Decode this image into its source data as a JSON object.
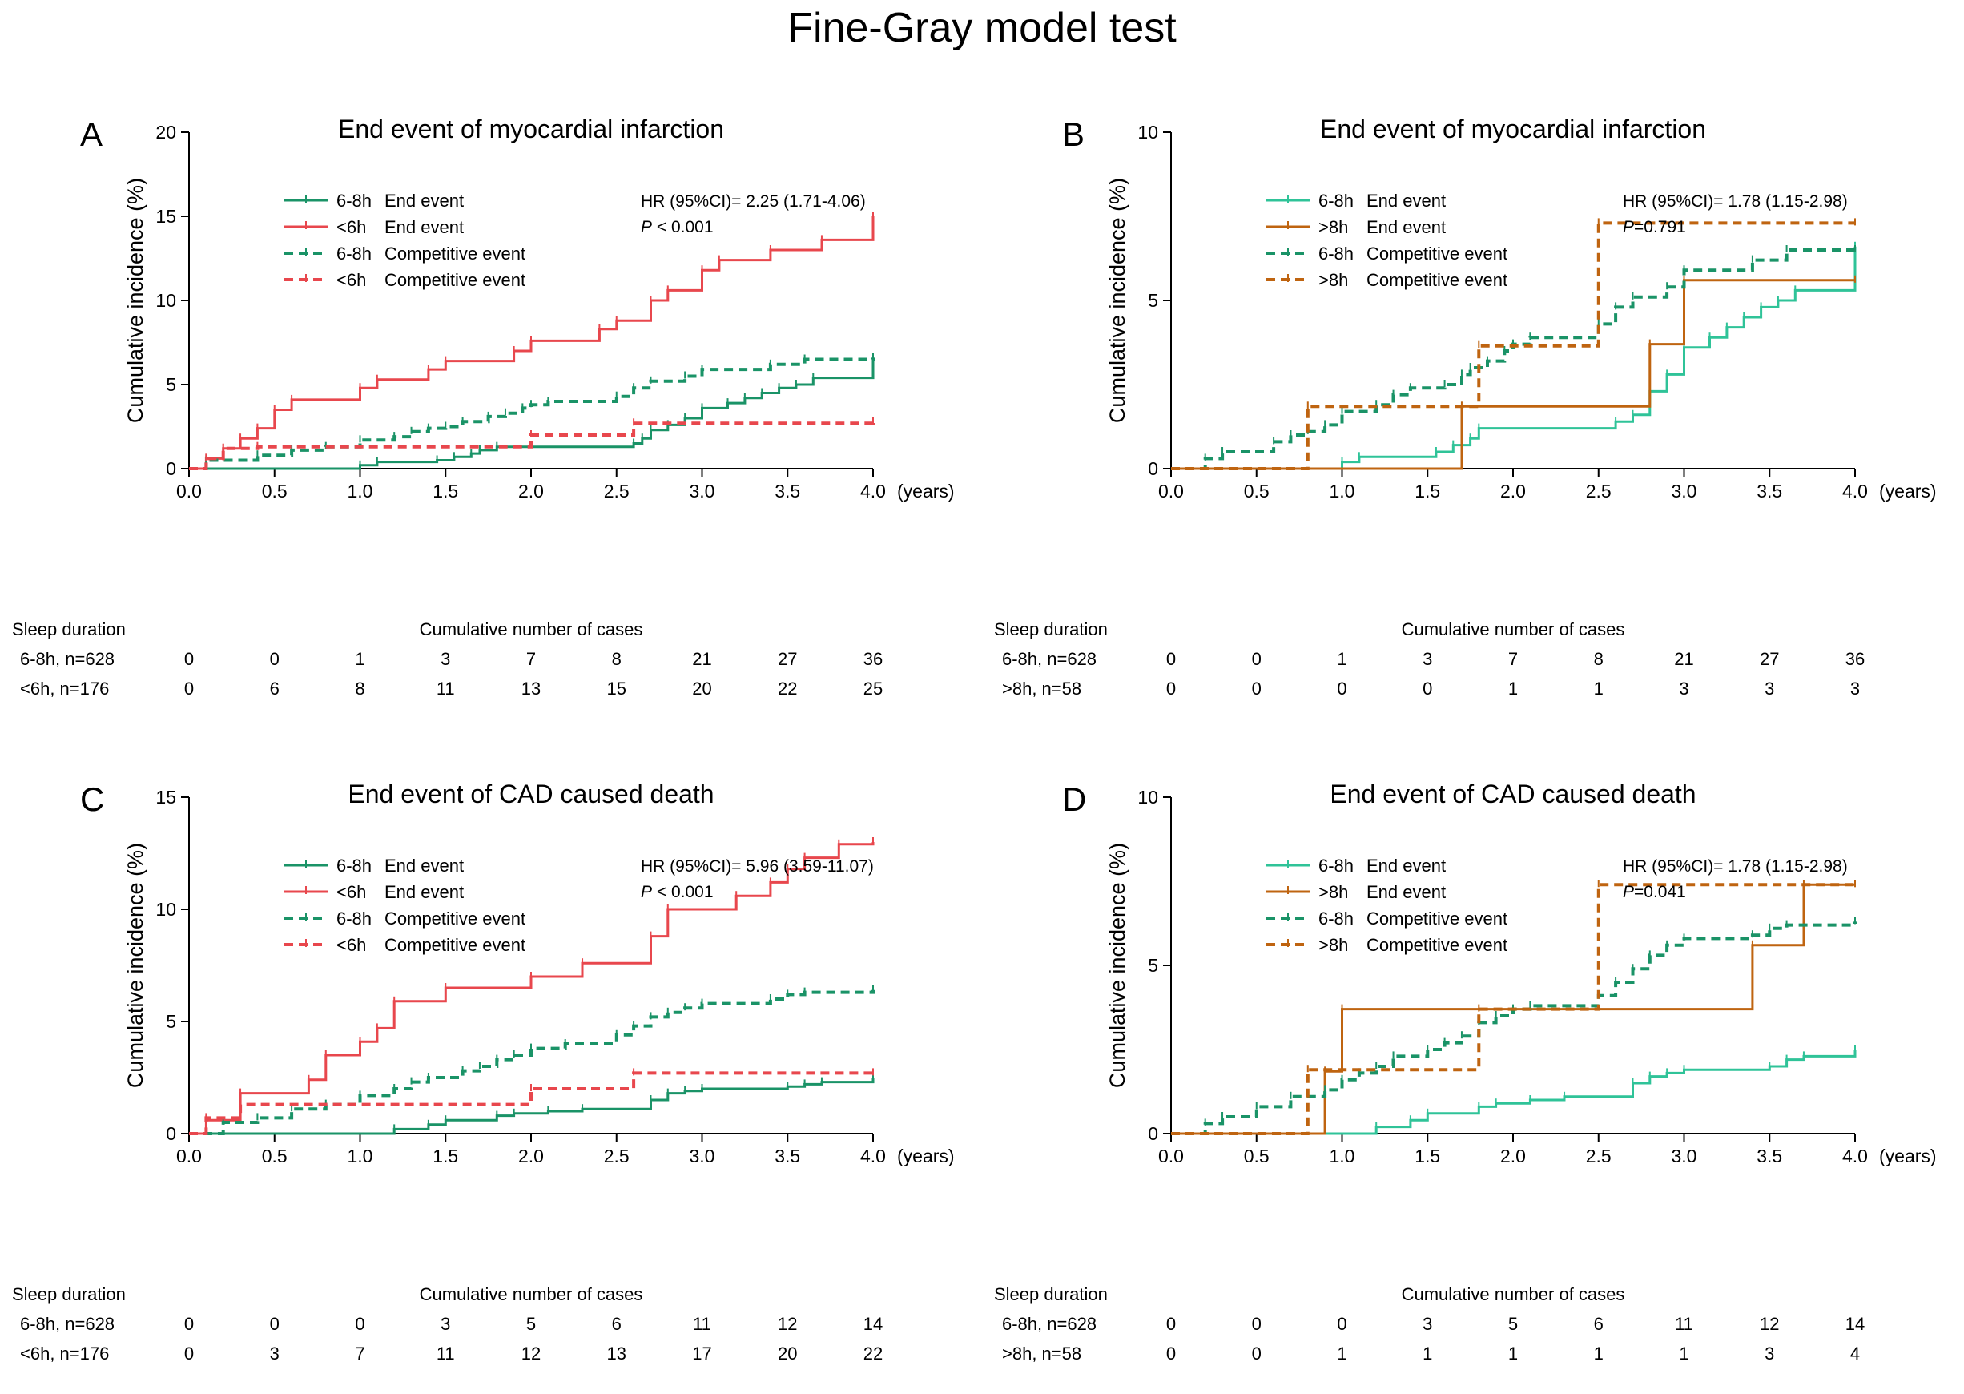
{
  "title": "Fine-Gray model test",
  "colors": {
    "green_dark": "#1a9367",
    "green_light": "#2fc398",
    "red": "#e8474d",
    "orange": "#bf6410"
  },
  "chart_data": [
    {
      "type": "line",
      "panel_label": "A",
      "title": "End event of myocardial infarction",
      "ylabel": "Cumulative incidence (%)",
      "xlabel": "(years)",
      "xlim": [
        0,
        4
      ],
      "ylim": [
        0,
        20
      ],
      "xticks": [
        "0.0",
        "0.5",
        "1.0",
        "1.5",
        "2.0",
        "2.5",
        "3.0",
        "3.5",
        "4.0"
      ],
      "yticks": [
        "0",
        "5",
        "10",
        "15",
        "20"
      ],
      "hr_text": "HR (95%CI)= 2.25 (1.71-4.06)",
      "p_text": "P < 0.001",
      "legend": [
        {
          "group": "6-8h",
          "event": "End event",
          "color": "#1a9367",
          "dash": false
        },
        {
          "group": "<6h",
          "event": "End event",
          "color": "#e8474d",
          "dash": false
        },
        {
          "group": "6-8h",
          "event": "Competitive event",
          "color": "#1a9367",
          "dash": true
        },
        {
          "group": "<6h",
          "event": "Competitive event",
          "color": "#e8474d",
          "dash": true
        }
      ],
      "series": [
        {
          "name": "6-8h End event",
          "color": "#1a9367",
          "dash": false,
          "x": [
            0,
            1.0,
            1.1,
            1.45,
            1.55,
            1.65,
            1.7,
            1.8,
            2.6,
            2.65,
            2.7,
            2.8,
            2.9,
            3.0,
            3.15,
            3.25,
            3.35,
            3.45,
            3.55,
            3.65,
            4.0
          ],
          "y": [
            0,
            0.2,
            0.4,
            0.5,
            0.7,
            0.9,
            1.1,
            1.3,
            1.5,
            1.8,
            2.3,
            2.6,
            3.0,
            3.6,
            3.9,
            4.2,
            4.5,
            4.8,
            5.0,
            5.4,
            6.6
          ]
        },
        {
          "name": "<6h End event",
          "color": "#e8474d",
          "dash": false,
          "x": [
            0,
            0.1,
            0.2,
            0.3,
            0.4,
            0.5,
            0.6,
            1.0,
            1.1,
            1.4,
            1.5,
            1.9,
            2.0,
            2.4,
            2.5,
            2.7,
            2.8,
            3.0,
            3.1,
            3.4,
            3.7,
            4.0
          ],
          "y": [
            0,
            0.6,
            1.2,
            1.8,
            2.4,
            3.5,
            4.1,
            4.8,
            5.3,
            5.9,
            6.4,
            7.0,
            7.6,
            8.3,
            8.8,
            10.0,
            10.6,
            11.8,
            12.4,
            13.0,
            13.6,
            15.0
          ]
        },
        {
          "name": "6-8h Competitive event",
          "color": "#1a9367",
          "dash": true,
          "x": [
            0,
            0.1,
            0.4,
            0.6,
            0.8,
            1.0,
            1.2,
            1.3,
            1.4,
            1.5,
            1.6,
            1.75,
            1.85,
            1.95,
            2.0,
            2.1,
            2.5,
            2.6,
            2.7,
            2.9,
            3.0,
            3.4,
            3.6,
            4.0
          ],
          "y": [
            0,
            0.5,
            0.8,
            1.1,
            1.3,
            1.7,
            1.9,
            2.2,
            2.4,
            2.5,
            2.8,
            3.1,
            3.3,
            3.6,
            3.8,
            4.0,
            4.3,
            4.8,
            5.2,
            5.5,
            5.9,
            6.2,
            6.5,
            6.6
          ]
        },
        {
          "name": "<6h Competitive event",
          "color": "#e8474d",
          "dash": true,
          "x": [
            0,
            0.1,
            0.2,
            0.4,
            2.0,
            2.6,
            4.0
          ],
          "y": [
            0,
            0.6,
            1.2,
            1.3,
            2.0,
            2.7,
            2.8
          ]
        }
      ],
      "risk_table": {
        "row_title": "Sleep duration",
        "header": "Cumulative number of cases",
        "rows": [
          {
            "label": "6-8h, n=628",
            "values": [
              "0",
              "0",
              "1",
              "3",
              "7",
              "8",
              "21",
              "27",
              "36"
            ]
          },
          {
            "label": "<6h, n=176",
            "values": [
              "0",
              "6",
              "8",
              "11",
              "13",
              "15",
              "20",
              "22",
              "25"
            ]
          }
        ]
      }
    },
    {
      "type": "line",
      "panel_label": "B",
      "title": "End event of myocardial infarction",
      "ylabel": "Cumulative incidence (%)",
      "xlabel": "(years)",
      "xlim": [
        0,
        4
      ],
      "ylim": [
        0,
        10
      ],
      "xticks": [
        "0.0",
        "0.5",
        "1.0",
        "1.5",
        "2.0",
        "2.5",
        "3.0",
        "3.5",
        "4.0"
      ],
      "yticks": [
        "0",
        "5",
        "10"
      ],
      "hr_text": "HR (95%CI)= 1.78 (1.15-2.98)",
      "p_text": "P=0.791",
      "legend": [
        {
          "group": "6-8h",
          "event": "End event",
          "color": "#2fc398",
          "dash": false
        },
        {
          "group": ">8h",
          "event": "End event",
          "color": "#bf6410",
          "dash": false
        },
        {
          "group": "6-8h",
          "event": "Competitive event",
          "color": "#1a9367",
          "dash": true
        },
        {
          "group": ">8h",
          "event": "Competitive event",
          "color": "#bf6410",
          "dash": true
        }
      ],
      "series": [
        {
          "name": "6-8h End event",
          "color": "#2fc398",
          "dash": false,
          "x": [
            0,
            1.0,
            1.1,
            1.55,
            1.65,
            1.75,
            1.8,
            2.6,
            2.7,
            2.8,
            2.9,
            3.0,
            3.15,
            3.25,
            3.35,
            3.45,
            3.55,
            3.65,
            4.0
          ],
          "y": [
            0,
            0.2,
            0.35,
            0.5,
            0.7,
            0.9,
            1.2,
            1.4,
            1.6,
            2.3,
            2.8,
            3.6,
            3.9,
            4.2,
            4.5,
            4.8,
            5.0,
            5.3,
            6.6
          ]
        },
        {
          "name": ">8h End event",
          "color": "#bf6410",
          "dash": false,
          "x": [
            0,
            1.7,
            2.8,
            3.0,
            4.0
          ],
          "y": [
            0,
            1.85,
            3.7,
            5.6,
            5.6
          ]
        },
        {
          "name": "6-8h Competitive event",
          "color": "#1a9367",
          "dash": true,
          "x": [
            0,
            0.2,
            0.3,
            0.6,
            0.7,
            0.8,
            0.9,
            1.0,
            1.2,
            1.3,
            1.4,
            1.6,
            1.7,
            1.75,
            1.85,
            1.95,
            2.0,
            2.1,
            2.5,
            2.6,
            2.7,
            2.9,
            3.0,
            3.4,
            3.6,
            4.0
          ],
          "y": [
            0,
            0.3,
            0.5,
            0.8,
            1.0,
            1.1,
            1.3,
            1.7,
            1.9,
            2.2,
            2.4,
            2.5,
            2.8,
            3.0,
            3.2,
            3.5,
            3.7,
            3.9,
            4.3,
            4.8,
            5.1,
            5.4,
            5.9,
            6.2,
            6.5,
            6.5
          ]
        },
        {
          "name": ">8h Competitive event",
          "color": "#bf6410",
          "dash": true,
          "x": [
            0,
            0.8,
            1.8,
            2.5,
            4.0
          ],
          "y": [
            0,
            1.85,
            3.65,
            7.3,
            7.3
          ]
        }
      ],
      "risk_table": {
        "row_title": "Sleep duration",
        "header": "Cumulative number of cases",
        "rows": [
          {
            "label": "6-8h, n=628",
            "values": [
              "0",
              "0",
              "1",
              "3",
              "7",
              "8",
              "21",
              "27",
              "36"
            ]
          },
          {
            "label": ">8h, n=58",
            "values": [
              "0",
              "0",
              "0",
              "0",
              "1",
              "1",
              "3",
              "3",
              "3"
            ]
          }
        ]
      }
    },
    {
      "type": "line",
      "panel_label": "C",
      "title": "End event of CAD caused death",
      "ylabel": "Cumulative incidence (%)",
      "xlabel": "(years)",
      "xlim": [
        0,
        4
      ],
      "ylim": [
        0,
        15
      ],
      "xticks": [
        "0.0",
        "0.5",
        "1.0",
        "1.5",
        "2.0",
        "2.5",
        "3.0",
        "3.5",
        "4.0"
      ],
      "yticks": [
        "0",
        "5",
        "10",
        "15"
      ],
      "hr_text": "HR (95%CI)= 5.96 (3.59-11.07)",
      "p_text": "P < 0.001",
      "legend": [
        {
          "group": "6-8h",
          "event": "End event",
          "color": "#1a9367",
          "dash": false
        },
        {
          "group": "<6h",
          "event": "End event",
          "color": "#e8474d",
          "dash": false
        },
        {
          "group": "6-8h",
          "event": "Competitive event",
          "color": "#1a9367",
          "dash": true
        },
        {
          "group": "<6h",
          "event": "Competitive event",
          "color": "#e8474d",
          "dash": true
        }
      ],
      "series": [
        {
          "name": "6-8h End event",
          "color": "#1a9367",
          "dash": false,
          "x": [
            0,
            1.2,
            1.4,
            1.5,
            1.8,
            1.9,
            2.1,
            2.3,
            2.7,
            2.8,
            2.9,
            3.0,
            3.5,
            3.6,
            3.7,
            4.0
          ],
          "y": [
            0,
            0.2,
            0.4,
            0.6,
            0.8,
            0.9,
            1.0,
            1.1,
            1.5,
            1.8,
            1.9,
            2.0,
            2.1,
            2.2,
            2.3,
            2.5
          ]
        },
        {
          "name": "<6h End event",
          "color": "#e8474d",
          "dash": false,
          "x": [
            0,
            0.1,
            0.3,
            0.7,
            0.8,
            1.0,
            1.1,
            1.2,
            1.5,
            2.0,
            2.3,
            2.7,
            2.8,
            3.2,
            3.4,
            3.5,
            3.6,
            3.8,
            4.0
          ],
          "y": [
            0,
            0.6,
            1.8,
            2.4,
            3.5,
            4.1,
            4.7,
            5.9,
            6.5,
            7.0,
            7.6,
            8.8,
            10.0,
            10.6,
            11.2,
            11.8,
            12.3,
            12.9,
            13.0
          ]
        },
        {
          "name": "6-8h Competitive event",
          "color": "#1a9367",
          "dash": true,
          "x": [
            0,
            0.2,
            0.4,
            0.6,
            0.8,
            1.0,
            1.2,
            1.3,
            1.4,
            1.6,
            1.7,
            1.8,
            1.9,
            2.0,
            2.2,
            2.5,
            2.6,
            2.7,
            2.8,
            2.9,
            3.0,
            3.4,
            3.5,
            3.6,
            4.0
          ],
          "y": [
            0,
            0.5,
            0.7,
            1.1,
            1.3,
            1.7,
            2.0,
            2.3,
            2.5,
            2.8,
            3.0,
            3.3,
            3.5,
            3.8,
            4.0,
            4.4,
            4.8,
            5.2,
            5.4,
            5.6,
            5.8,
            6.0,
            6.2,
            6.3,
            6.4
          ]
        },
        {
          "name": "<6h Competitive event",
          "color": "#e8474d",
          "dash": true,
          "x": [
            0,
            0.1,
            0.3,
            2.0,
            2.6,
            4.0
          ],
          "y": [
            0,
            0.7,
            1.3,
            2.0,
            2.7,
            2.7
          ]
        }
      ],
      "risk_table": {
        "row_title": "Sleep duration",
        "header": "Cumulative number of cases",
        "rows": [
          {
            "label": "6-8h, n=628",
            "values": [
              "0",
              "0",
              "0",
              "3",
              "5",
              "6",
              "11",
              "12",
              "14"
            ]
          },
          {
            "label": "<6h, n=176",
            "values": [
              "0",
              "3",
              "7",
              "11",
              "12",
              "13",
              "17",
              "20",
              "22"
            ]
          }
        ]
      }
    },
    {
      "type": "line",
      "panel_label": "D",
      "title": "End event of CAD caused death",
      "ylabel": "Cumulative incidence (%)",
      "xlabel": "(years)",
      "xlim": [
        0,
        4
      ],
      "ylim": [
        0,
        10
      ],
      "xticks": [
        "0.0",
        "0.5",
        "1.0",
        "1.5",
        "2.0",
        "2.5",
        "3.0",
        "3.5",
        "4.0"
      ],
      "yticks": [
        "0",
        "5",
        "10"
      ],
      "hr_text": "HR (95%CI)= 1.78 (1.15-2.98)",
      "p_text": "P=0.041",
      "legend": [
        {
          "group": "6-8h",
          "event": "End event",
          "color": "#2fc398",
          "dash": false
        },
        {
          "group": ">8h",
          "event": "End event",
          "color": "#bf6410",
          "dash": false
        },
        {
          "group": "6-8h",
          "event": "Competitive event",
          "color": "#1a9367",
          "dash": true
        },
        {
          "group": ">8h",
          "event": "Competitive event",
          "color": "#bf6410",
          "dash": true
        }
      ],
      "series": [
        {
          "name": "6-8h End event",
          "color": "#2fc398",
          "dash": false,
          "x": [
            0,
            1.2,
            1.4,
            1.5,
            1.8,
            1.9,
            2.1,
            2.3,
            2.7,
            2.8,
            2.9,
            3.0,
            3.5,
            3.6,
            3.7,
            4.0
          ],
          "y": [
            0,
            0.2,
            0.4,
            0.6,
            0.8,
            0.9,
            1.0,
            1.1,
            1.5,
            1.7,
            1.8,
            1.9,
            2.0,
            2.2,
            2.3,
            2.5
          ]
        },
        {
          "name": ">8h End event",
          "color": "#bf6410",
          "dash": false,
          "x": [
            0,
            0.9,
            1.0,
            3.4,
            3.7,
            4.0
          ],
          "y": [
            0,
            1.85,
            3.7,
            5.6,
            7.4,
            7.4
          ]
        },
        {
          "name": "6-8h Competitive event",
          "color": "#1a9367",
          "dash": true,
          "x": [
            0,
            0.2,
            0.3,
            0.5,
            0.7,
            0.9,
            1.0,
            1.1,
            1.2,
            1.3,
            1.5,
            1.6,
            1.7,
            1.8,
            1.9,
            2.0,
            2.1,
            2.5,
            2.6,
            2.7,
            2.8,
            2.9,
            3.0,
            3.4,
            3.5,
            3.6,
            4.0
          ],
          "y": [
            0,
            0.3,
            0.5,
            0.8,
            1.1,
            1.3,
            1.6,
            1.8,
            2.0,
            2.3,
            2.5,
            2.7,
            2.9,
            3.3,
            3.5,
            3.7,
            3.8,
            4.1,
            4.5,
            4.9,
            5.3,
            5.6,
            5.8,
            5.9,
            6.1,
            6.2,
            6.3
          ]
        },
        {
          "name": ">8h Competitive event",
          "color": "#bf6410",
          "dash": true,
          "x": [
            0,
            0.8,
            1.8,
            2.5,
            4.0
          ],
          "y": [
            0,
            1.9,
            3.7,
            7.4,
            7.4
          ]
        }
      ],
      "risk_table": {
        "row_title": "Sleep duration",
        "header": "Cumulative number of cases",
        "rows": [
          {
            "label": "6-8h, n=628",
            "values": [
              "0",
              "0",
              "0",
              "3",
              "5",
              "6",
              "11",
              "12",
              "14"
            ]
          },
          {
            "label": ">8h, n=58",
            "values": [
              "0",
              "0",
              "1",
              "1",
              "1",
              "1",
              "1",
              "3",
              "4"
            ]
          }
        ]
      }
    }
  ]
}
